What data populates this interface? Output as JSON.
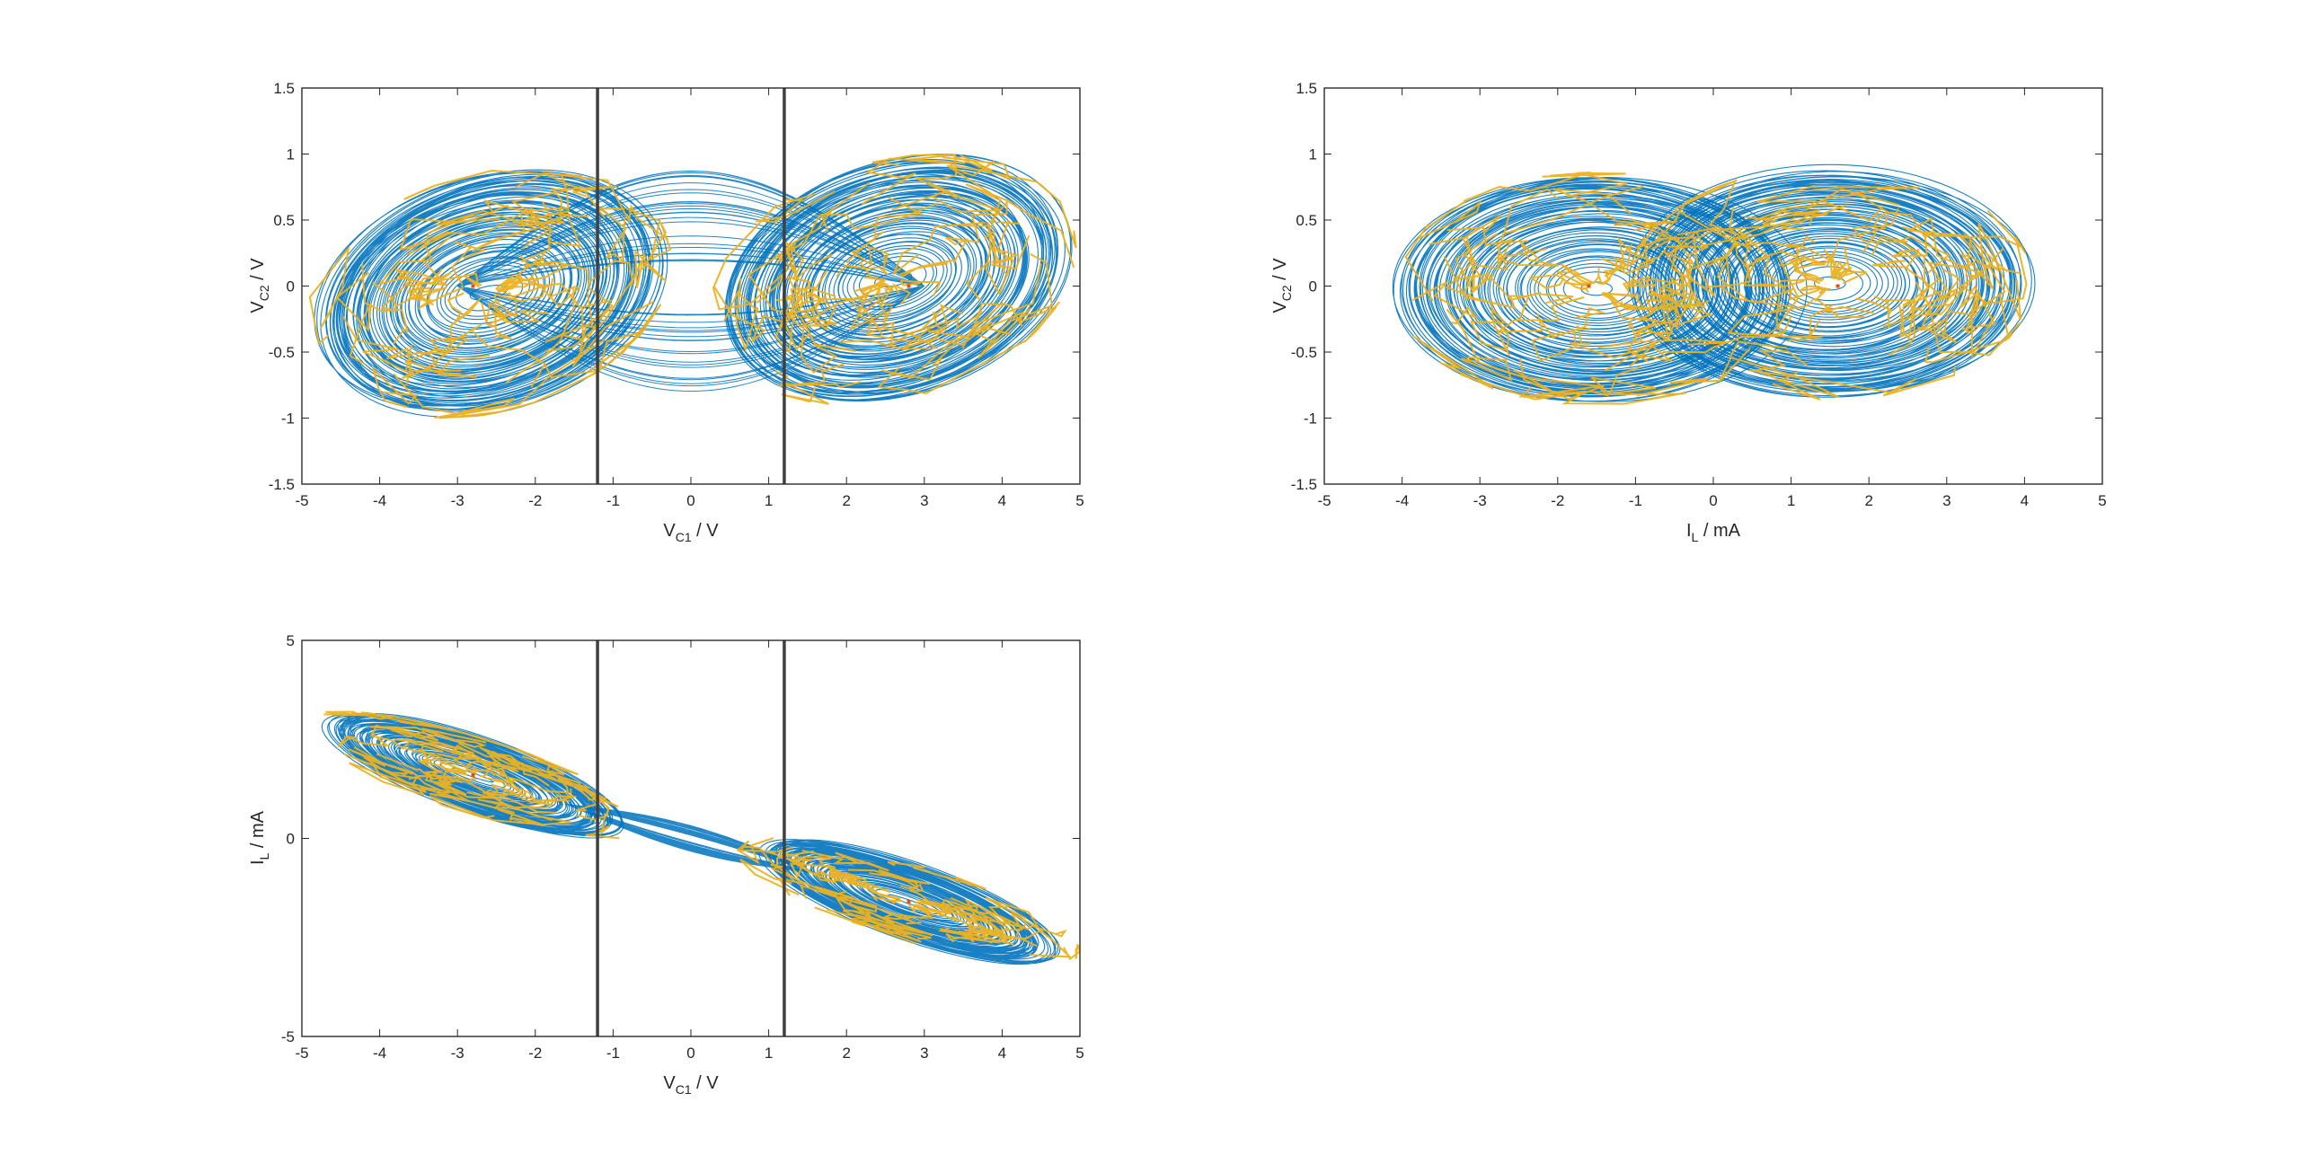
{
  "colors": {
    "trajectory": "#0072BD",
    "overlay": "#EDB120",
    "equilibrium": "#D95319",
    "breakpoint": "#404040",
    "axis": "#262626"
  },
  "chart_data": [
    {
      "id": "vc1-vc2",
      "type": "line",
      "title": "",
      "xlabel": {
        "main": "V",
        "sub": "C1",
        "unit": " / V"
      },
      "ylabel": {
        "main": "V",
        "sub": "C2",
        "unit": " / V"
      },
      "xlim": [
        -5,
        5
      ],
      "ylim": [
        -1.5,
        1.5
      ],
      "xticks": [
        -5,
        -4,
        -3,
        -2,
        -1,
        0,
        1,
        2,
        3,
        4,
        5
      ],
      "yticks": [
        -1.5,
        -1,
        -0.5,
        0,
        0.5,
        1,
        1.5
      ],
      "xtick_labels": [
        "-5",
        "-4",
        "-3",
        "-2",
        "-1",
        "0",
        "1",
        "2",
        "3",
        "4",
        "5"
      ],
      "ytick_labels": [
        "-1.5",
        "-1",
        "-0.5",
        "0",
        "0.5",
        "1",
        "1.5"
      ],
      "vlines": [
        -1.2,
        1.2
      ],
      "equilibria": [
        [
          -2.8,
          0
        ],
        [
          2.8,
          0
        ]
      ],
      "series": [
        {
          "name": "trajectory",
          "lobes": [
            {
              "cx": -2.6,
              "cy": -0.05,
              "rx_min": 0.25,
              "rx_max": 2.35,
              "ry_min": 0.05,
              "ry_max": 0.92,
              "tilt": 0.32
            },
            {
              "cx": 2.6,
              "cy": 0.05,
              "rx_min": 0.25,
              "rx_max": 2.35,
              "ry_min": 0.05,
              "ry_max": 0.92,
              "tilt": 0.32
            }
          ],
          "bridge": {
            "x0": -3.0,
            "x1": 3.0,
            "amp": 0.95
          }
        },
        {
          "name": "overlay"
        }
      ]
    },
    {
      "id": "il-vc2",
      "type": "line",
      "title": "",
      "xlabel": {
        "main": "I",
        "sub": "L",
        "unit": " / mA"
      },
      "ylabel": {
        "main": "V",
        "sub": "C2",
        "unit": " / V"
      },
      "xlim": [
        -5,
        5
      ],
      "ylim": [
        -1.5,
        1.5
      ],
      "xticks": [
        -5,
        -4,
        -3,
        -2,
        -1,
        0,
        1,
        2,
        3,
        4,
        5
      ],
      "yticks": [
        -1.5,
        -1,
        -0.5,
        0,
        0.5,
        1,
        1.5
      ],
      "xtick_labels": [
        "-5",
        "-4",
        "-3",
        "-2",
        "-1",
        "0",
        "1",
        "2",
        "3",
        "4",
        "5"
      ],
      "ytick_labels": [
        "-1.5",
        "-1",
        "-0.5",
        "0",
        "0.5",
        "1",
        "1.5"
      ],
      "vlines": [],
      "equilibria": [
        [
          -1.6,
          0
        ],
        [
          1.6,
          0
        ]
      ],
      "series": [
        {
          "name": "trajectory",
          "lobes": [
            {
              "cx": -1.5,
              "cy": -0.02,
              "rx_min": 0.2,
              "rx_max": 2.6,
              "ry_min": 0.05,
              "ry_max": 0.88,
              "tilt": 0.0
            },
            {
              "cx": 1.5,
              "cy": 0.02,
              "rx_min": 0.2,
              "rx_max": 2.6,
              "ry_min": 0.05,
              "ry_max": 0.88,
              "tilt": 0.0
            }
          ]
        },
        {
          "name": "overlay"
        }
      ]
    },
    {
      "id": "vc1-il",
      "type": "line",
      "title": "",
      "xlabel": {
        "main": "V",
        "sub": "C1",
        "unit": " / V"
      },
      "ylabel": {
        "main": "I",
        "sub": "L",
        "unit": " / mA"
      },
      "xlim": [
        -5,
        5
      ],
      "ylim": [
        -5,
        5
      ],
      "xticks": [
        -5,
        -4,
        -3,
        -2,
        -1,
        0,
        1,
        2,
        3,
        4,
        5
      ],
      "yticks": [
        -5,
        0,
        5
      ],
      "xtick_labels": [
        "-5",
        "-4",
        "-3",
        "-2",
        "-1",
        "0",
        "1",
        "2",
        "3",
        "4",
        "5"
      ],
      "ytick_labels": [
        "-5",
        "0",
        "5"
      ],
      "vlines": [
        -1.2,
        1.2
      ],
      "equilibria": [
        [
          -2.8,
          1.6
        ],
        [
          2.8,
          -1.6
        ]
      ],
      "series": [
        {
          "name": "trajectory",
          "lobes": [
            {
              "cx": -2.8,
              "cy": 1.6,
              "rx_min": 0.3,
              "rx_max": 2.2,
              "ry_min": 0.05,
              "ry_max": 1.0,
              "tilt": -0.52
            },
            {
              "cx": 2.8,
              "cy": -1.6,
              "rx_min": 0.3,
              "rx_max": 2.2,
              "ry_min": 0.05,
              "ry_max": 1.0,
              "tilt": -0.52
            }
          ],
          "bridge": {
            "x0": -1.6,
            "x1": 1.6,
            "amp": 0.55,
            "slope": -0.6
          }
        },
        {
          "name": "overlay"
        }
      ]
    }
  ]
}
